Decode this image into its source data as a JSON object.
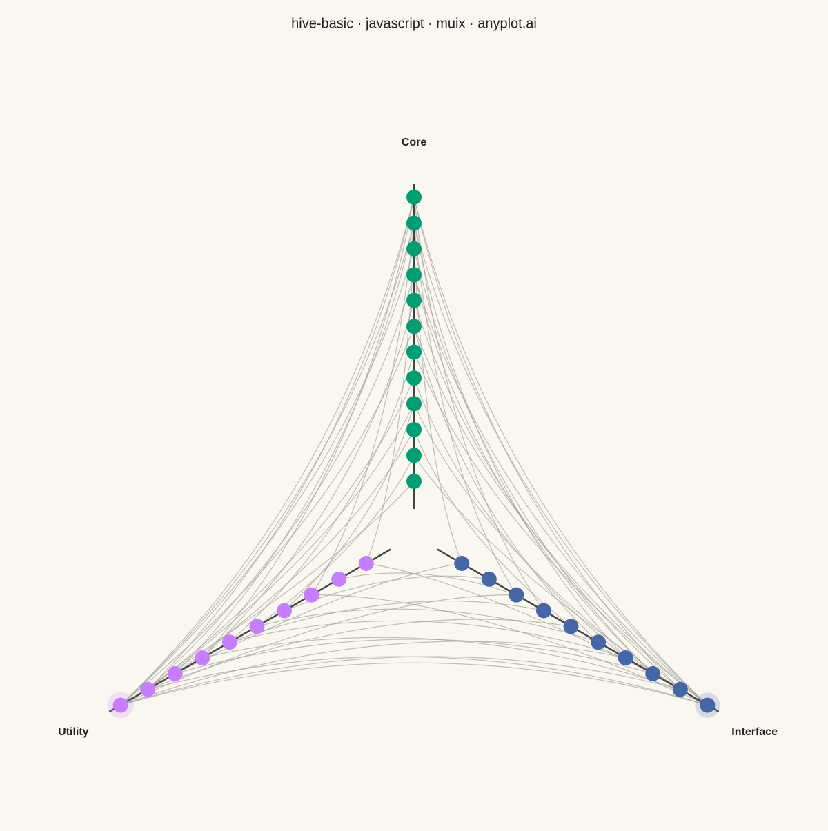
{
  "chart_data": {
    "type": "hive",
    "title": "hive-basic · javascript · muix · anyplot.ai",
    "rlim": [
      0,
      1
    ],
    "axes": [
      {
        "name": "Core",
        "color": "#009E73",
        "values": [
          0.085,
          0.165,
          0.244,
          0.324,
          0.403,
          0.483,
          0.562,
          0.642,
          0.721,
          0.801,
          0.88,
          0.96
        ]
      },
      {
        "name": "Interface",
        "color": "#4467A6",
        "values": [
          0.087,
          0.184,
          0.281,
          0.378,
          0.475,
          0.572,
          0.669,
          0.766,
          0.863,
          0.96
        ]
      },
      {
        "name": "Utility",
        "color": "#C77DFF",
        "values": [
          0.087,
          0.184,
          0.281,
          0.378,
          0.475,
          0.572,
          0.669,
          0.766,
          0.863,
          0.96
        ]
      }
    ],
    "edge_color": "#a3a39b",
    "edges": [
      [
        0,
        11,
        2,
        9
      ],
      [
        0,
        11,
        2,
        8
      ],
      [
        0,
        10,
        2,
        9
      ],
      [
        0,
        10,
        2,
        7
      ],
      [
        0,
        9,
        2,
        9
      ],
      [
        0,
        8,
        2,
        8
      ],
      [
        0,
        7,
        2,
        6
      ],
      [
        0,
        6,
        2,
        9
      ],
      [
        0,
        5,
        2,
        5
      ],
      [
        0,
        4,
        2,
        8
      ],
      [
        0,
        3,
        2,
        3
      ],
      [
        0,
        2,
        2,
        7
      ],
      [
        0,
        1,
        2,
        4
      ],
      [
        0,
        0,
        2,
        9
      ],
      [
        0,
        11,
        2,
        6
      ],
      [
        0,
        10,
        2,
        2
      ],
      [
        0,
        9,
        2,
        0
      ],
      [
        0,
        3,
        2,
        8
      ],
      [
        0,
        11,
        1,
        9
      ],
      [
        0,
        11,
        1,
        8
      ],
      [
        0,
        10,
        1,
        9
      ],
      [
        0,
        10,
        1,
        6
      ],
      [
        0,
        9,
        1,
        7
      ],
      [
        0,
        8,
        1,
        9
      ],
      [
        0,
        7,
        1,
        8
      ],
      [
        0,
        6,
        1,
        5
      ],
      [
        0,
        5,
        1,
        9
      ],
      [
        0,
        4,
        1,
        6
      ],
      [
        0,
        3,
        1,
        7
      ],
      [
        0,
        2,
        1,
        4
      ],
      [
        0,
        1,
        1,
        8
      ],
      [
        0,
        11,
        1,
        3
      ],
      [
        0,
        10,
        1,
        2
      ],
      [
        0,
        9,
        1,
        0
      ],
      [
        0,
        8,
        1,
        7
      ],
      [
        0,
        6,
        1,
        9
      ],
      [
        1,
        9,
        2,
        9
      ],
      [
        1,
        9,
        2,
        8
      ],
      [
        1,
        8,
        2,
        9
      ],
      [
        1,
        8,
        2,
        6
      ],
      [
        1,
        7,
        2,
        7
      ],
      [
        1,
        6,
        2,
        9
      ],
      [
        1,
        5,
        2,
        4
      ],
      [
        1,
        4,
        2,
        8
      ],
      [
        1,
        3,
        2,
        5
      ],
      [
        1,
        2,
        2,
        9
      ],
      [
        1,
        1,
        2,
        3
      ],
      [
        1,
        0,
        2,
        7
      ],
      [
        1,
        9,
        2,
        2
      ],
      [
        1,
        7,
        2,
        0
      ],
      [
        1,
        6,
        2,
        5
      ],
      [
        1,
        2,
        2,
        1
      ]
    ]
  }
}
